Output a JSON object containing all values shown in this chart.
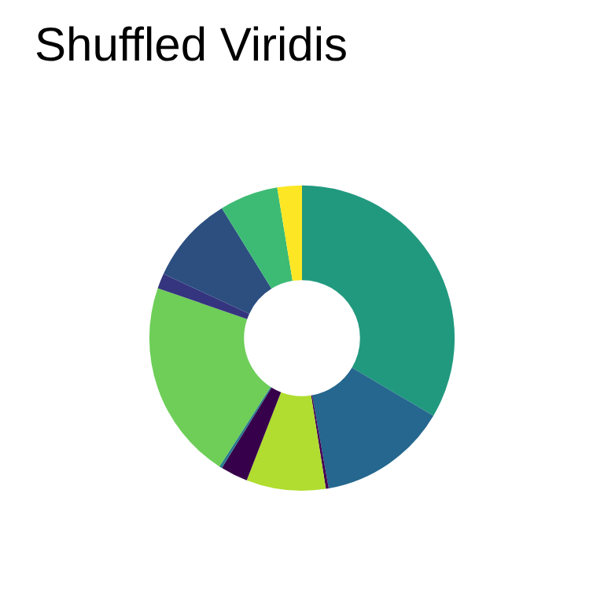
{
  "chart_data": {
    "type": "donut",
    "title": "Shuffled Viridis",
    "categories": [
      null,
      null,
      null,
      null,
      null,
      null,
      null,
      null,
      null,
      null,
      null
    ],
    "values": [
      33.5,
      13.7,
      0.3,
      8.4,
      2.9,
      0.3,
      21.2,
      1.6,
      9.3,
      6.2,
      2.6
    ],
    "colors": [
      "#21997f",
      "#25678e",
      "#440154",
      "#b0dd2f",
      "#37004a",
      "#2a7b8e",
      "#6ece58",
      "#35347e",
      "#2c4f80",
      "#3dbb74",
      "#fde725"
    ],
    "legend": false
  }
}
